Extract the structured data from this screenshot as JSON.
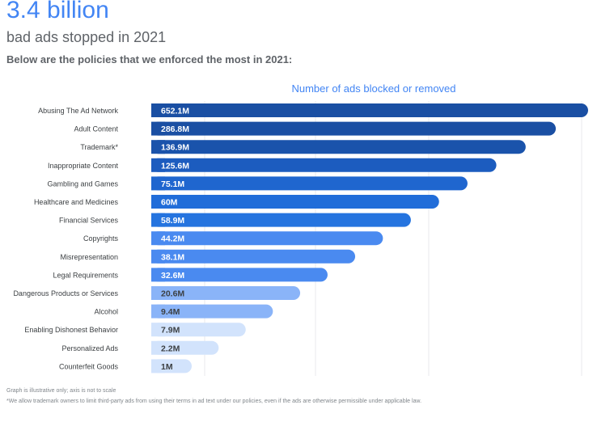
{
  "header": {
    "headline": "3.4 billion",
    "subheadline": "bad ads stopped in 2021",
    "intro": "Below are the policies that we enforced the most in 2021:"
  },
  "chart_data": {
    "type": "bar",
    "orientation": "horizontal",
    "title": "Number of ads blocked or removed",
    "categories": [
      "Abusing The Ad Network",
      "Adult Content",
      "Trademark*",
      "Inappropriate Content",
      "Gambling and Games",
      "Healthcare and Medicines",
      "Financial Services",
      "Copyrights",
      "Misrepresentation",
      "Legal Requirements",
      "Dangerous Products or Services",
      "Alcohol",
      "Enabling Dishonest Behavior",
      "Personalized Ads",
      "Counterfeit Goods"
    ],
    "values": [
      652.1,
      286.8,
      136.9,
      125.6,
      75.1,
      60,
      58.9,
      44.2,
      38.1,
      32.6,
      20.6,
      9.4,
      7.9,
      2.2,
      1
    ],
    "value_labels": [
      "652.1M",
      "286.8M",
      "136.9M",
      "125.6M",
      "75.1M",
      "60M",
      "58.9M",
      "44.2M",
      "38.1M",
      "32.6M",
      "20.6M",
      "9.4M",
      "7.9M",
      "2.2M",
      "1M"
    ],
    "unit": "M",
    "bar_colors": [
      "#1a4fa3",
      "#1a4fa3",
      "#1a53ab",
      "#1c5cbf",
      "#1f66cf",
      "#216dd9",
      "#2574df",
      "#4a8af0",
      "#4a8af0",
      "#4a8af0",
      "#8ab4f8",
      "#8ab4f8",
      "#d2e3fc",
      "#d2e3fc",
      "#d2e3fc"
    ],
    "label_colors": [
      "#ffffff",
      "#ffffff",
      "#ffffff",
      "#ffffff",
      "#ffffff",
      "#ffffff",
      "#ffffff",
      "#ffffff",
      "#ffffff",
      "#ffffff",
      "#3c4043",
      "#3c4043",
      "#3c4043",
      "#3c4043",
      "#3c4043"
    ],
    "axis_scale": "not to scale",
    "grid": true,
    "title_color": "#4285f4"
  },
  "footnotes": {
    "note1": "Graph is illustrative only; axis is not to scale",
    "note2": "*We allow trademark owners to limit third-party ads from using their terms in ad text under our policies, even if the ads are otherwise permissible under applicable law."
  }
}
